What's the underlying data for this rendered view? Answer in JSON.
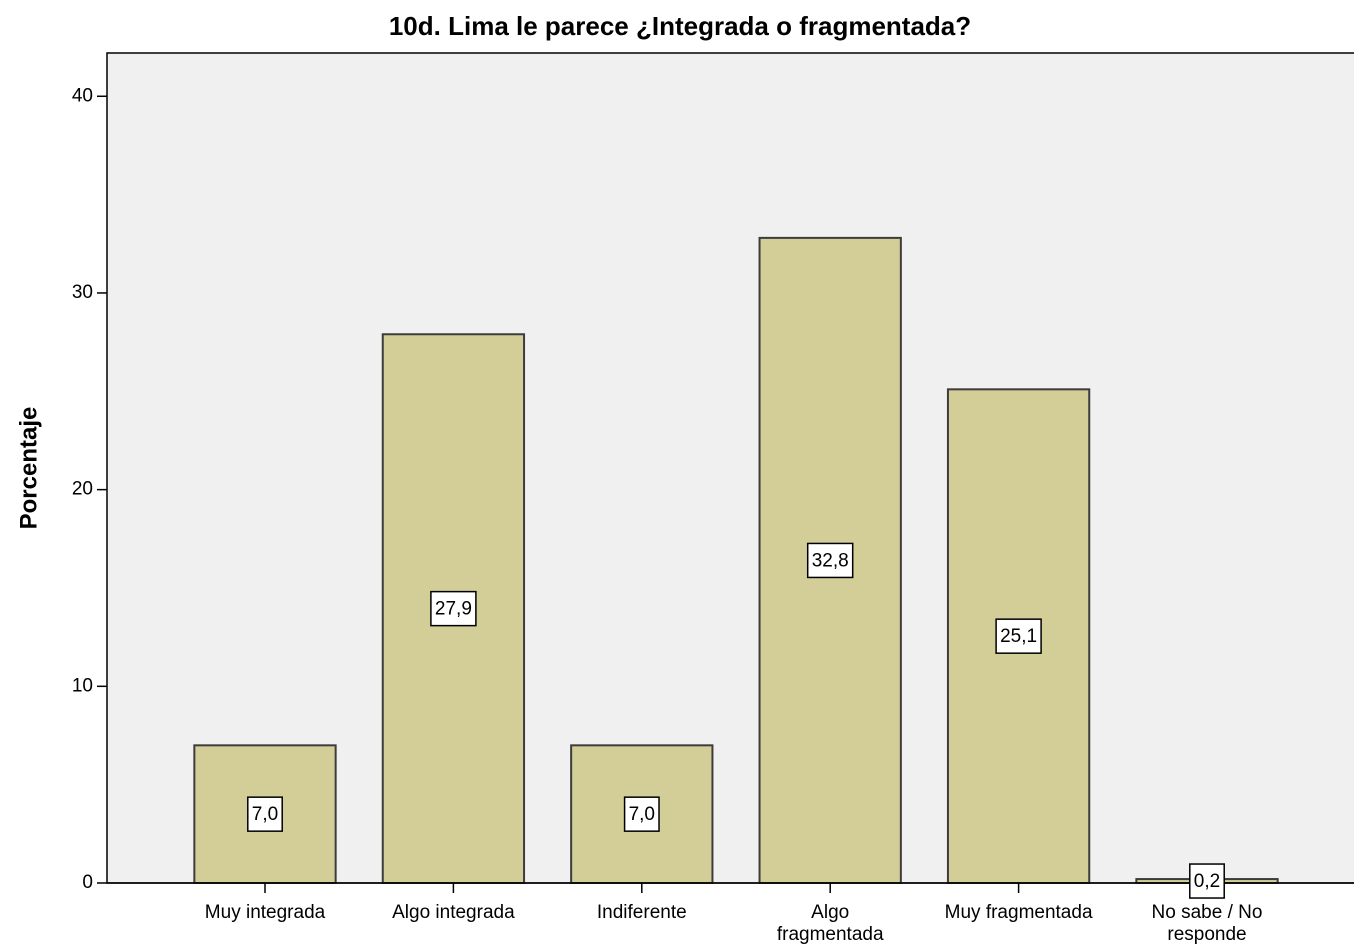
{
  "chart_data": {
    "type": "bar",
    "title": "10d. Lima le parece ¿Integrada o fragmentada?",
    "y_label": "Porcentaje",
    "categories": [
      "Muy integrada",
      "Algo integrada",
      "Indiferente",
      "Algo\nfragmentada",
      "Muy fragmentada",
      "No sabe / No\nresponde"
    ],
    "values": [
      7.0,
      27.9,
      7.0,
      32.8,
      25.1,
      0.2
    ],
    "value_labels": [
      "7,0",
      "27,9",
      "7,0",
      "32,8",
      "25,1",
      "0,2"
    ],
    "color": "#d3ce97",
    "ylim": [
      0,
      42.2
    ],
    "yticks": [
      0,
      10,
      20,
      30,
      40
    ],
    "grid": false
  }
}
